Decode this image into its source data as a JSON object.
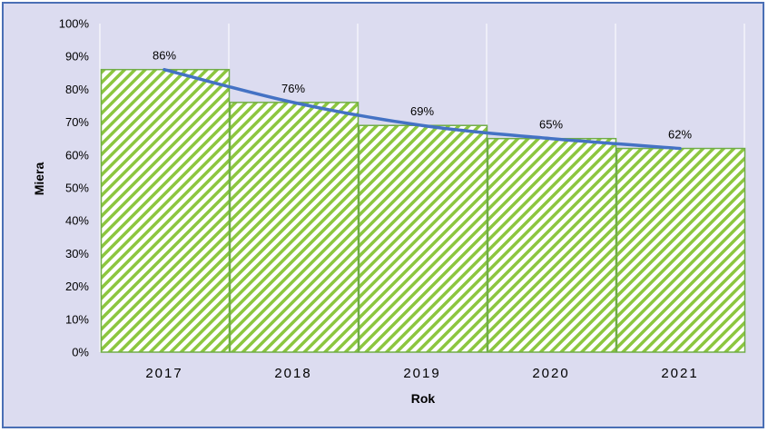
{
  "chart_data": {
    "type": "bar",
    "categories": [
      "2017",
      "2018",
      "2019",
      "2020",
      "2021"
    ],
    "values": [
      86,
      76,
      69,
      65,
      62
    ],
    "data_labels": [
      "86%",
      "76%",
      "69%",
      "65%",
      "62%"
    ],
    "xlabel": "Rok",
    "ylabel": "Miera",
    "ylim": [
      0,
      100
    ],
    "yticks": [
      0,
      10,
      20,
      30,
      40,
      50,
      60,
      70,
      80,
      90,
      100
    ],
    "ytick_labels": [
      "0%",
      "10%",
      "20%",
      "30%",
      "40%",
      "50%",
      "60%",
      "70%",
      "80%",
      "90%",
      "100%"
    ],
    "grid": "vertical",
    "trendline": true,
    "colors": {
      "frame_border": "#4a6fb5",
      "plot_background": "#dcdcf0",
      "bar_fill": "#ffffff",
      "bar_hatch": "#8cc63f",
      "bar_border": "#70ad47",
      "trendline": "#4472c4",
      "gridline": "#ffffff"
    }
  }
}
